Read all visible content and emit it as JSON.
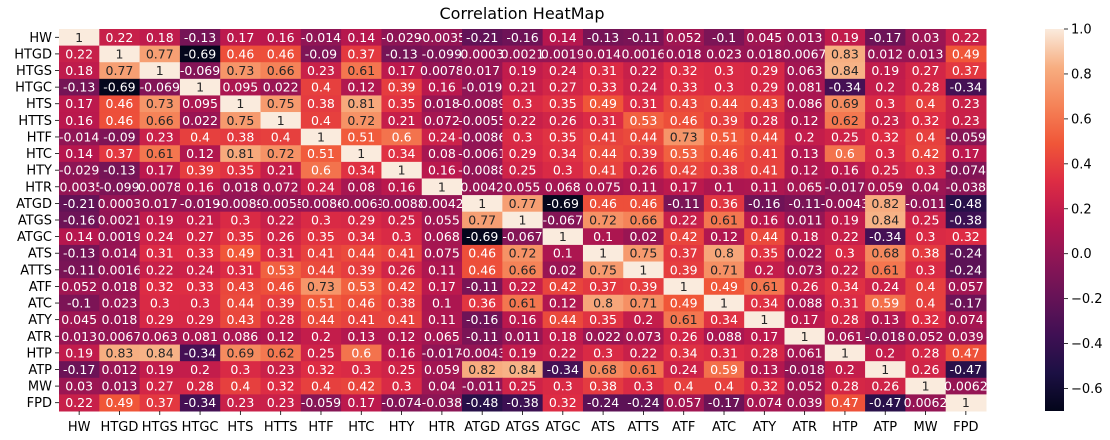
{
  "chart_data": {
    "type": "heatmap",
    "title": "Correlation HeatMap",
    "labels": [
      "HW",
      "HTGD",
      "HTGS",
      "HTGC",
      "HTS",
      "HTTS",
      "HTF",
      "HTC",
      "HTY",
      "HTR",
      "ATGD",
      "ATGS",
      "ATGC",
      "ATS",
      "ATTS",
      "ATF",
      "ATC",
      "ATY",
      "ATR",
      "HTP",
      "ATP",
      "MW",
      "FPD"
    ],
    "colorbar": {
      "range": [
        -0.7,
        1.0
      ],
      "ticks": [
        "1.0",
        "0.8",
        "0.6",
        "0.4",
        "0.2",
        "0.0",
        "−0.2",
        "−0.4",
        "−0.6"
      ],
      "tick_values": [
        1.0,
        0.8,
        0.6,
        0.4,
        0.2,
        0.0,
        -0.2,
        -0.4,
        -0.6
      ]
    },
    "matrix": [
      [
        "1",
        "0.22",
        "0.18",
        "-0.13",
        "0.17",
        "0.16",
        "-0.014",
        "0.14",
        "-0.029",
        "-0.0035",
        "-0.21",
        "-0.16",
        "0.14",
        "-0.13",
        "-0.11",
        "0.052",
        "-0.1",
        "0.045",
        "0.013",
        "0.19",
        "-0.17",
        "0.03",
        "0.22"
      ],
      [
        "0.22",
        "1",
        "0.77",
        "-0.69",
        "0.46",
        "0.46",
        "-0.09",
        "0.37",
        "-0.13",
        "-0.099",
        "0.0003",
        "0.0021",
        "0.0019",
        "0.014",
        "0.0016",
        "0.018",
        "0.023",
        "0.018",
        "0.0067",
        "0.83",
        "0.012",
        "0.013",
        "0.49"
      ],
      [
        "0.18",
        "0.77",
        "1",
        "-0.069",
        "0.73",
        "0.66",
        "0.23",
        "0.61",
        "0.17",
        "0.0078",
        "0.017",
        "0.19",
        "0.24",
        "0.31",
        "0.22",
        "0.32",
        "0.3",
        "0.29",
        "0.063",
        "0.84",
        "0.19",
        "0.27",
        "0.37"
      ],
      [
        "-0.13",
        "-0.69",
        "-0.069",
        "1",
        "0.095",
        "0.022",
        "0.4",
        "0.12",
        "0.39",
        "0.16",
        "-0.019",
        "0.21",
        "0.27",
        "0.33",
        "0.24",
        "0.33",
        "0.3",
        "0.29",
        "0.081",
        "-0.34",
        "0.2",
        "0.28",
        "-0.34"
      ],
      [
        "0.17",
        "0.46",
        "0.73",
        "0.095",
        "1",
        "0.75",
        "0.38",
        "0.81",
        "0.35",
        "0.018",
        "-0.0089",
        "0.3",
        "0.35",
        "0.49",
        "0.31",
        "0.43",
        "0.44",
        "0.43",
        "0.086",
        "0.69",
        "0.3",
        "0.4",
        "0.23"
      ],
      [
        "0.16",
        "0.46",
        "0.66",
        "0.022",
        "0.75",
        "1",
        "0.4",
        "0.72",
        "0.21",
        "0.072",
        "-0.0055",
        "0.22",
        "0.26",
        "0.31",
        "0.53",
        "0.46",
        "0.39",
        "0.28",
        "0.12",
        "0.62",
        "0.23",
        "0.32",
        "0.23"
      ],
      [
        "-0.014",
        "-0.09",
        "0.23",
        "0.4",
        "0.38",
        "0.4",
        "1",
        "0.51",
        "0.6",
        "0.24",
        "-0.0086",
        "0.3",
        "0.35",
        "0.41",
        "0.44",
        "0.73",
        "0.51",
        "0.44",
        "0.2",
        "0.25",
        "0.32",
        "0.4",
        "-0.059"
      ],
      [
        "0.14",
        "0.37",
        "0.61",
        "0.12",
        "0.81",
        "0.72",
        "0.51",
        "1",
        "0.34",
        "0.08",
        "-0.0061",
        "0.29",
        "0.34",
        "0.44",
        "0.39",
        "0.53",
        "0.46",
        "0.41",
        "0.13",
        "0.6",
        "0.3",
        "0.42",
        "0.17"
      ],
      [
        "-0.029",
        "-0.13",
        "0.17",
        "0.39",
        "0.35",
        "0.21",
        "0.6",
        "0.34",
        "1",
        "0.16",
        "-0.0088",
        "0.25",
        "0.3",
        "0.41",
        "0.26",
        "0.42",
        "0.38",
        "0.41",
        "0.12",
        "0.16",
        "0.25",
        "0.3",
        "-0.074"
      ],
      [
        "-0.0035",
        "-0.099",
        "0.0078",
        "0.16",
        "0.018",
        "0.072",
        "0.24",
        "0.08",
        "0.16",
        "1",
        "0.0042",
        "0.055",
        "0.068",
        "0.075",
        "0.11",
        "0.17",
        "0.1",
        "0.11",
        "0.065",
        "-0.017",
        "0.059",
        "0.04",
        "-0.038"
      ],
      [
        "-0.21",
        "0.0003",
        "0.017",
        "-0.019",
        "-0.0089",
        "-0.0055",
        "-0.0086",
        "-0.0061",
        "-0.0088",
        "0.0042",
        "1",
        "0.77",
        "-0.69",
        "0.46",
        "0.46",
        "-0.11",
        "0.36",
        "-0.16",
        "-0.11",
        "-0.0043",
        "0.82",
        "-0.011",
        "-0.48"
      ],
      [
        "-0.16",
        "0.0021",
        "0.19",
        "0.21",
        "0.3",
        "0.22",
        "0.3",
        "0.29",
        "0.25",
        "0.055",
        "0.77",
        "1",
        "-0.067",
        "0.72",
        "0.66",
        "0.22",
        "0.61",
        "0.16",
        "0.011",
        "0.19",
        "0.84",
        "0.25",
        "-0.38"
      ],
      [
        "0.14",
        "0.0019",
        "0.24",
        "0.27",
        "0.35",
        "0.26",
        "0.35",
        "0.34",
        "0.3",
        "0.068",
        "-0.69",
        "-0.067",
        "1",
        "0.1",
        "0.02",
        "0.42",
        "0.12",
        "0.44",
        "0.18",
        "0.22",
        "-0.34",
        "0.3",
        "0.32"
      ],
      [
        "-0.13",
        "0.014",
        "0.31",
        "0.33",
        "0.49",
        "0.31",
        "0.41",
        "0.44",
        "0.41",
        "0.075",
        "0.46",
        "0.72",
        "0.1",
        "1",
        "0.75",
        "0.37",
        "0.8",
        "0.35",
        "0.022",
        "0.3",
        "0.68",
        "0.38",
        "-0.24"
      ],
      [
        "-0.11",
        "0.0016",
        "0.22",
        "0.24",
        "0.31",
        "0.53",
        "0.44",
        "0.39",
        "0.26",
        "0.11",
        "0.46",
        "0.66",
        "0.02",
        "0.75",
        "1",
        "0.39",
        "0.71",
        "0.2",
        "0.073",
        "0.22",
        "0.61",
        "0.3",
        "-0.24"
      ],
      [
        "0.052",
        "0.018",
        "0.32",
        "0.33",
        "0.43",
        "0.46",
        "0.73",
        "0.53",
        "0.42",
        "0.17",
        "-0.11",
        "0.22",
        "0.42",
        "0.37",
        "0.39",
        "1",
        "0.49",
        "0.61",
        "0.26",
        "0.34",
        "0.24",
        "0.4",
        "0.057"
      ],
      [
        "-0.1",
        "0.023",
        "0.3",
        "0.3",
        "0.44",
        "0.39",
        "0.51",
        "0.46",
        "0.38",
        "0.1",
        "0.36",
        "0.61",
        "0.12",
        "0.8",
        "0.71",
        "0.49",
        "1",
        "0.34",
        "0.088",
        "0.31",
        "0.59",
        "0.4",
        "-0.17"
      ],
      [
        "0.045",
        "0.018",
        "0.29",
        "0.29",
        "0.43",
        "0.28",
        "0.44",
        "0.41",
        "0.41",
        "0.11",
        "-0.16",
        "0.16",
        "0.44",
        "0.35",
        "0.2",
        "0.61",
        "0.34",
        "1",
        "0.17",
        "0.28",
        "0.13",
        "0.32",
        "0.074"
      ],
      [
        "0.013",
        "0.0067",
        "0.063",
        "0.081",
        "0.086",
        "0.12",
        "0.2",
        "0.13",
        "0.12",
        "0.065",
        "-0.11",
        "0.011",
        "0.18",
        "0.022",
        "0.073",
        "0.26",
        "0.088",
        "0.17",
        "1",
        "0.061",
        "-0.018",
        "0.052",
        "0.039"
      ],
      [
        "0.19",
        "0.83",
        "0.84",
        "-0.34",
        "0.69",
        "0.62",
        "0.25",
        "0.6",
        "0.16",
        "-0.017",
        "-0.0043",
        "0.19",
        "0.22",
        "0.3",
        "0.22",
        "0.34",
        "0.31",
        "0.28",
        "0.061",
        "1",
        "0.2",
        "0.28",
        "0.47"
      ],
      [
        "-0.17",
        "0.012",
        "0.19",
        "0.2",
        "0.3",
        "0.23",
        "0.32",
        "0.3",
        "0.25",
        "0.059",
        "0.82",
        "0.84",
        "-0.34",
        "0.68",
        "0.61",
        "0.24",
        "0.59",
        "0.13",
        "-0.018",
        "0.2",
        "1",
        "0.26",
        "-0.47"
      ],
      [
        "0.03",
        "0.013",
        "0.27",
        "0.28",
        "0.4",
        "0.32",
        "0.4",
        "0.42",
        "0.3",
        "0.04",
        "-0.011",
        "0.25",
        "0.3",
        "0.38",
        "0.3",
        "0.4",
        "0.4",
        "0.32",
        "0.052",
        "0.28",
        "0.26",
        "1",
        "0.0062"
      ],
      [
        "0.22",
        "0.49",
        "0.37",
        "-0.34",
        "0.23",
        "0.23",
        "-0.059",
        "0.17",
        "-0.074",
        "-0.038",
        "-0.48",
        "-0.38",
        "0.32",
        "-0.24",
        "-0.24",
        "0.057",
        "-0.17",
        "0.074",
        "0.039",
        "0.47",
        "-0.47",
        "0.0062",
        "1"
      ]
    ]
  }
}
